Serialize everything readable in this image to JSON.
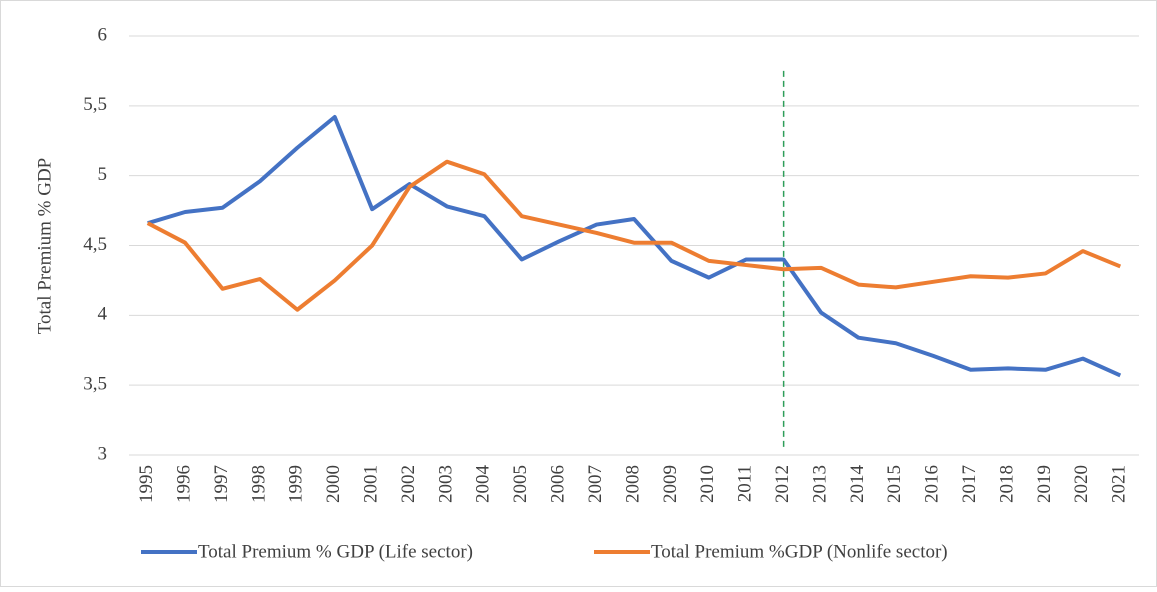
{
  "chart_data": {
    "type": "line",
    "y_label": "Total Premium % GDP",
    "categories": [
      "1995",
      "1996",
      "1997",
      "1998",
      "1999",
      "2000",
      "2001",
      "2002",
      "2003",
      "2004",
      "2005",
      "2006",
      "2007",
      "2008",
      "2009",
      "2010",
      "2011",
      "2012",
      "2013",
      "2014",
      "2015",
      "2016",
      "2017",
      "2018",
      "2019",
      "2020",
      "2021"
    ],
    "series": [
      {
        "name": "Total Premium % GDP (Life sector)",
        "color": "#4472c4",
        "values": [
          4.66,
          4.74,
          4.77,
          4.96,
          5.2,
          5.42,
          4.76,
          4.94,
          4.78,
          4.71,
          4.4,
          4.53,
          4.65,
          4.69,
          4.39,
          4.27,
          4.4,
          4.4,
          4.02,
          3.84,
          3.8,
          3.71,
          3.61,
          3.62,
          3.61,
          3.69,
          3.57
        ]
      },
      {
        "name": "Total Premium %GDP (Nonlife sector)",
        "color": "#ed7d31",
        "values": [
          4.66,
          4.52,
          4.19,
          4.26,
          4.04,
          4.25,
          4.5,
          4.92,
          5.1,
          5.01,
          4.71,
          4.65,
          4.59,
          4.52,
          4.52,
          4.39,
          4.36,
          4.33,
          4.34,
          4.22,
          4.2,
          4.24,
          4.28,
          4.27,
          4.3,
          4.46,
          4.35
        ]
      }
    ],
    "ylim": [
      3,
      6
    ],
    "yticks": [
      3,
      {
        "value": 3.5,
        "label": "3,5"
      },
      4,
      {
        "value": 4.5,
        "label": "4,5"
      },
      5,
      {
        "value": 5.5,
        "label": "5,5"
      },
      6
    ],
    "grid": true,
    "legend": "bottom",
    "reference_line": {
      "category": "2012",
      "color": "#2e9e5a"
    }
  }
}
